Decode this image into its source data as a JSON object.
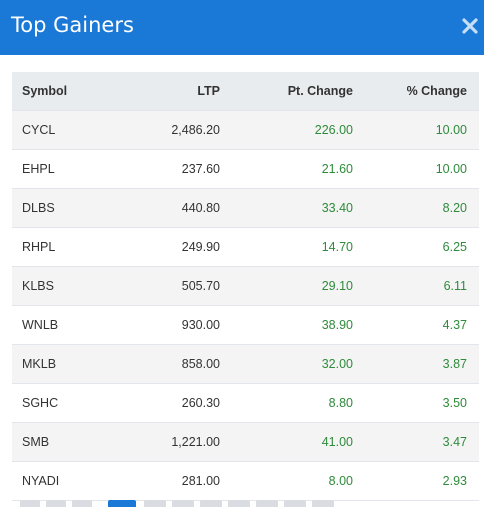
{
  "modal": {
    "title": "Top Gainers",
    "close_icon": "close-icon"
  },
  "colors": {
    "header": "#1a78d6",
    "positive": "#2e8b3a",
    "header_row": "#e9ecef"
  },
  "table": {
    "columns": [
      "Symbol",
      "LTP",
      "Pt. Change",
      "% Change"
    ],
    "rows": [
      {
        "symbol": "CYCL",
        "ltp": "2,486.20",
        "pt_change": "226.00",
        "pct_change": "10.00"
      },
      {
        "symbol": "EHPL",
        "ltp": "237.60",
        "pt_change": "21.60",
        "pct_change": "10.00"
      },
      {
        "symbol": "DLBS",
        "ltp": "440.80",
        "pt_change": "33.40",
        "pct_change": "8.20"
      },
      {
        "symbol": "RHPL",
        "ltp": "249.90",
        "pt_change": "14.70",
        "pct_change": "6.25"
      },
      {
        "symbol": "KLBS",
        "ltp": "505.70",
        "pt_change": "29.10",
        "pct_change": "6.11"
      },
      {
        "symbol": "WNLB",
        "ltp": "930.00",
        "pt_change": "38.90",
        "pct_change": "4.37"
      },
      {
        "symbol": "MKLB",
        "ltp": "858.00",
        "pt_change": "32.00",
        "pct_change": "3.87"
      },
      {
        "symbol": "SGHC",
        "ltp": "260.30",
        "pt_change": "8.80",
        "pct_change": "3.50"
      },
      {
        "symbol": "SMB",
        "ltp": "1,221.00",
        "pt_change": "41.00",
        "pct_change": "3.47"
      },
      {
        "symbol": "NYADI",
        "ltp": "281.00",
        "pt_change": "8.00",
        "pct_change": "2.93"
      }
    ]
  }
}
